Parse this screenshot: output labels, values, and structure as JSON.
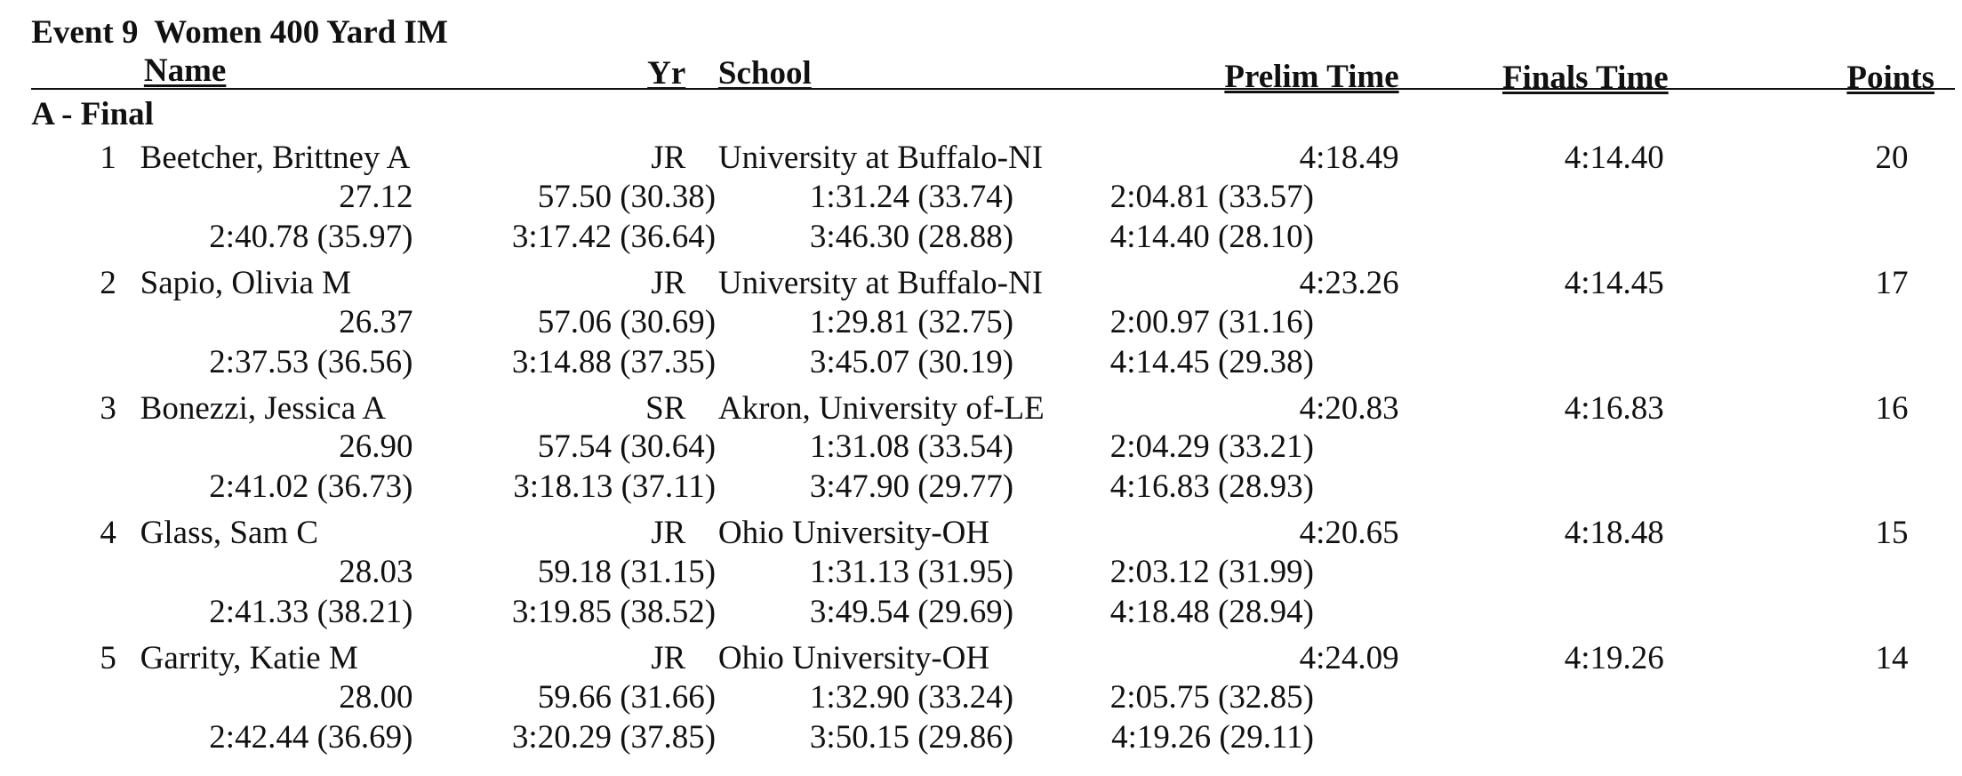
{
  "header": {
    "title": "Event 9  Women 400 Yard IM",
    "columns": {
      "name": "Name",
      "yr": "Yr",
      "school": "School",
      "prelim": "Prelim Time",
      "finals": "Finals Time",
      "points": "Points"
    }
  },
  "section": "A - Final",
  "swimmers": [
    {
      "place": "1",
      "name": "Beetcher, Brittney A",
      "yr": "JR",
      "school": "University at Buffalo-NI",
      "prelim": "4:18.49",
      "finals": "4:14.40",
      "points": "20",
      "splits": [
        "27.12",
        "57.50 (30.38)",
        "1:31.24 (33.74)",
        "2:04.81 (33.57)",
        "2:40.78 (35.97)",
        "3:17.42 (36.64)",
        "3:46.30 (28.88)",
        "4:14.40 (28.10)"
      ]
    },
    {
      "place": "2",
      "name": "Sapio, Olivia M",
      "yr": "JR",
      "school": "University at Buffalo-NI",
      "prelim": "4:23.26",
      "finals": "4:14.45",
      "points": "17",
      "splits": [
        "26.37",
        "57.06 (30.69)",
        "1:29.81 (32.75)",
        "2:00.97 (31.16)",
        "2:37.53 (36.56)",
        "3:14.88 (37.35)",
        "3:45.07 (30.19)",
        "4:14.45 (29.38)"
      ]
    },
    {
      "place": "3",
      "name": "Bonezzi, Jessica A",
      "yr": "SR",
      "school": "Akron, University of-LE",
      "prelim": "4:20.83",
      "finals": "4:16.83",
      "points": "16",
      "splits": [
        "26.90",
        "57.54 (30.64)",
        "1:31.08 (33.54)",
        "2:04.29 (33.21)",
        "2:41.02 (36.73)",
        "3:18.13 (37.11)",
        "3:47.90 (29.77)",
        "4:16.83 (28.93)"
      ]
    },
    {
      "place": "4",
      "name": "Glass, Sam C",
      "yr": "JR",
      "school": "Ohio University-OH",
      "prelim": "4:20.65",
      "finals": "4:18.48",
      "points": "15",
      "splits": [
        "28.03",
        "59.18 (31.15)",
        "1:31.13 (31.95)",
        "2:03.12 (31.99)",
        "2:41.33 (38.21)",
        "3:19.85 (38.52)",
        "3:49.54 (29.69)",
        "4:18.48 (28.94)"
      ]
    },
    {
      "place": "5",
      "name": "Garrity, Katie M",
      "yr": "JR",
      "school": "Ohio University-OH",
      "prelim": "4:24.09",
      "finals": "4:19.26",
      "points": "14",
      "splits": [
        "28.00",
        "59.66 (31.66)",
        "1:32.90 (33.24)",
        "2:05.75 (32.85)",
        "2:42.44 (36.69)",
        "3:20.29 (37.85)",
        "3:50.15 (29.86)",
        "4:19.26 (29.11)"
      ]
    }
  ]
}
